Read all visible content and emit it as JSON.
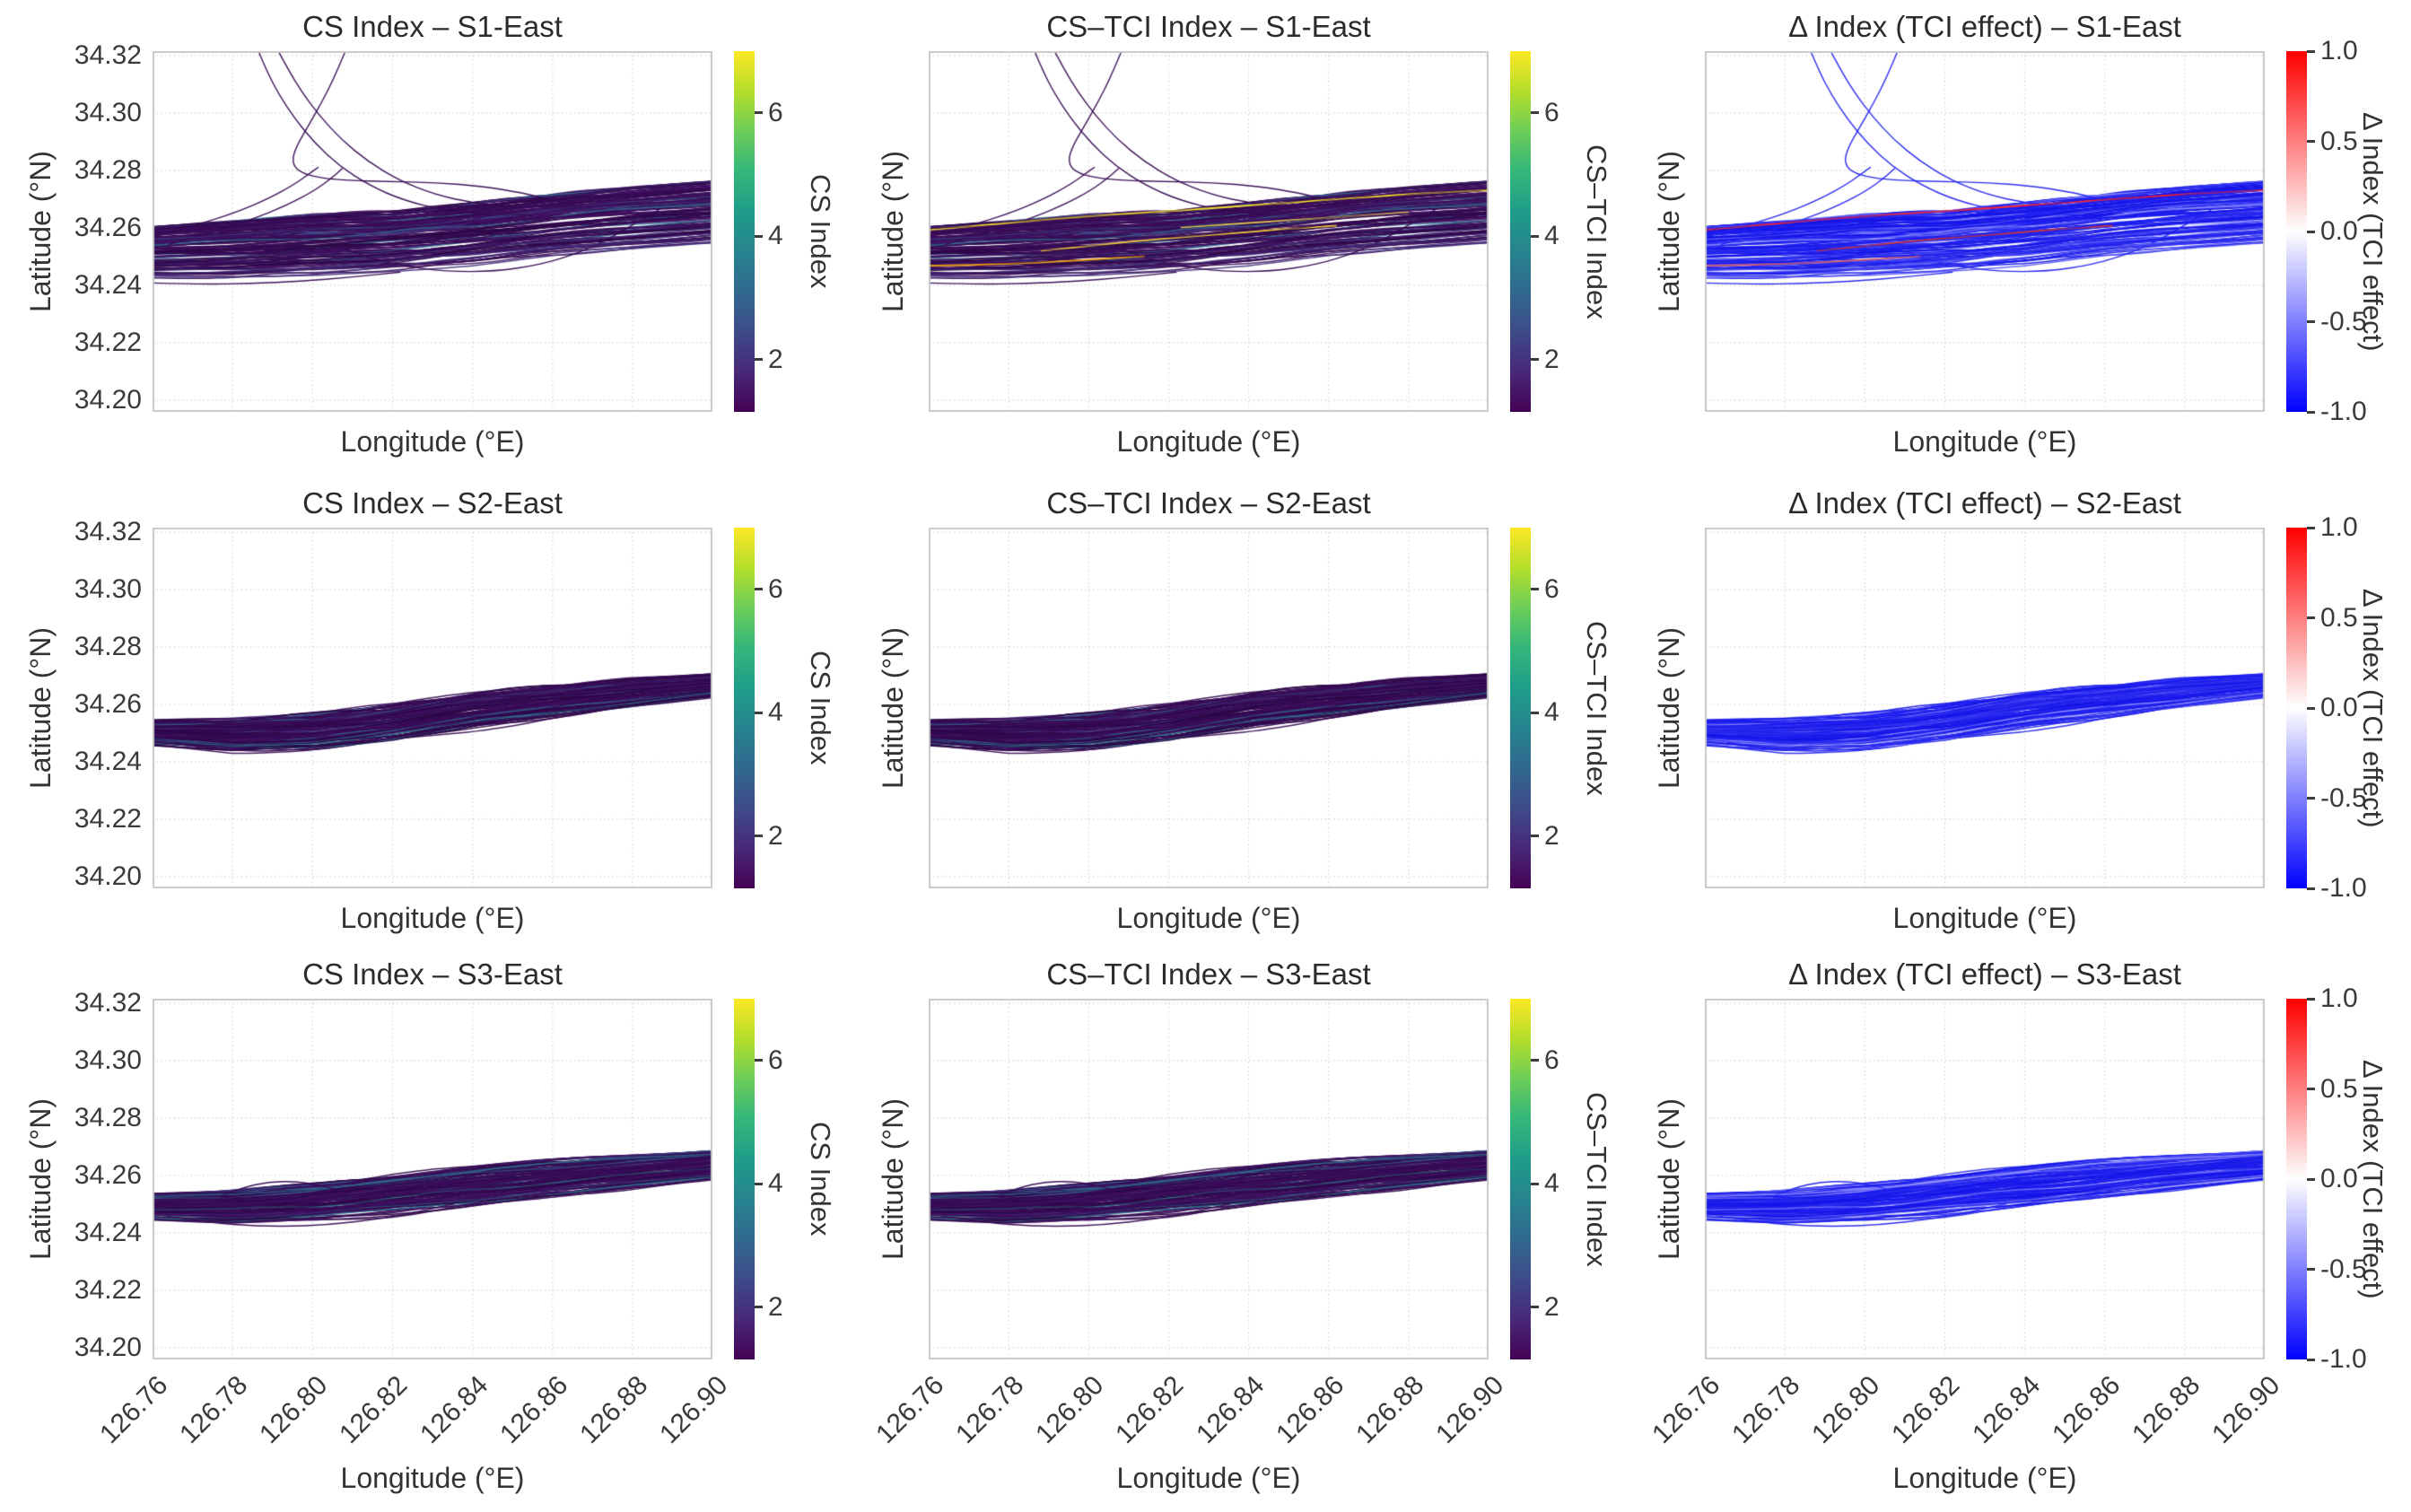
{
  "chart_data": {
    "type": "line",
    "subtype": "trajectory-small-multiples",
    "grid": {
      "n_rows": 3,
      "n_cols": 3
    },
    "row_names": [
      "S1-East",
      "S2-East",
      "S3-East"
    ],
    "col_names": [
      "CS Index",
      "CS–TCI Index",
      "Δ Index (TCI effect)"
    ],
    "titles": [
      [
        "CS Index – S1-East",
        "CS–TCI Index – S1-East",
        "Δ Index (TCI effect) – S1-East"
      ],
      [
        "CS Index – S2-East",
        "CS–TCI Index – S2-East",
        "Δ Index (TCI effect) – S2-East"
      ],
      [
        "CS Index – S3-East",
        "CS–TCI Index – S3-East",
        "Δ Index (TCI effect) – S3-East"
      ]
    ],
    "axes": {
      "xlabel": "Longitude (°E)",
      "ylabel": "Latitude (°N)",
      "xlim": [
        126.76,
        126.9
      ],
      "ylim": [
        34.1959,
        34.3216
      ],
      "xtick_labels": [
        "126.76",
        "126.78",
        "126.80",
        "126.82",
        "126.84",
        "126.86",
        "126.88",
        "126.90"
      ],
      "ytick_labels": [
        "34.32",
        "34.30",
        "34.28",
        "34.26",
        "34.24",
        "34.22",
        "34.20"
      ],
      "grid_on": true,
      "grid_style": "dotted",
      "xtick_rotation_deg": 45,
      "ytick_numbers_only_on_first_column": true,
      "xtick_numbers_only_on_bottom_row": true
    },
    "colorbars": [
      {
        "label": "CS Index",
        "cmap": "viridis",
        "range": [
          1.15,
          7.0
        ],
        "ticks": [
          {
            "label": "6",
            "value": 6
          },
          {
            "label": "4",
            "value": 4
          },
          {
            "label": "2",
            "value": 2
          }
        ]
      },
      {
        "label": "CS–TCI Index",
        "cmap": "viridis",
        "range": [
          1.15,
          7.0
        ],
        "ticks": [
          {
            "label": "6",
            "value": 6
          },
          {
            "label": "4",
            "value": 4
          },
          {
            "label": "2",
            "value": 2
          }
        ]
      },
      {
        "label": "Δ Index (TCI effect)",
        "cmap": "bwr",
        "range": [
          -1.0,
          1.0
        ],
        "ticks": [
          {
            "label": "1.0",
            "value": 1.0
          },
          {
            "label": "0.5",
            "value": 0.5
          },
          {
            "label": "0.0",
            "value": 0.0
          },
          {
            "label": "-0.5",
            "value": -0.5
          },
          {
            "label": "-1.0",
            "value": -1.0
          }
        ]
      }
    ],
    "palette": {
      "viridis_dark_lines": [
        "#360a52",
        "#2c0847",
        "#3f0f61"
      ],
      "viridis_mid_line": "#45337e",
      "viridis_steel_line": "#31688e",
      "viridis_teal_line": "#277f8e",
      "delta_blue_lines": [
        "#1e1ef2",
        "#2c2cee",
        "#1414e8"
      ],
      "delta_light_blue": "#5a5af6",
      "delta_lighter_blue": "#9393ff",
      "delta_palest_blue": "#bcbcff",
      "delta_red_line": "#ff2222",
      "grid_color": "#d4d4d4",
      "frame_color": "#c9c9c9",
      "title_color": "#2b2b2b",
      "tick_color": "#3a3a3a"
    },
    "rows": [
      {
        "name": "S1-East",
        "render": {
          "seed": 11,
          "n_lines": 135,
          "steps": 56
        },
        "envelope": {
          "x": [
            126.76,
            126.78,
            126.8,
            126.82,
            126.84,
            126.86,
            126.88,
            126.9
          ],
          "bottom": [
            34.2425,
            34.2425,
            34.2435,
            34.2455,
            34.2475,
            34.2505,
            34.2525,
            34.2545
          ],
          "top": [
            34.2605,
            34.2625,
            34.2645,
            34.2655,
            34.2685,
            34.2715,
            34.2745,
            34.2765
          ]
        },
        "features": [
          {
            "name": "north-exit-1",
            "pts": [
              [
                126.7865,
                34.3215
              ],
              [
                126.7886,
                34.3145
              ],
              [
                126.7916,
                34.3065
              ],
              [
                126.7956,
                34.298
              ],
              [
                126.8006,
                34.2895
              ],
              [
                126.8068,
                34.2815
              ],
              [
                126.8142,
                34.2748
              ],
              [
                126.8228,
                34.2696
              ],
              [
                126.8325,
                34.2663
              ],
              [
                126.8435,
                34.2648
              ],
              [
                126.8545,
                34.2645
              ]
            ]
          },
          {
            "name": "north-exit-2",
            "pts": [
              [
                126.7915,
                34.3215
              ],
              [
                126.794,
                34.315
              ],
              [
                126.7974,
                34.3072
              ],
              [
                126.8018,
                34.299
              ],
              [
                126.8072,
                34.2908
              ],
              [
                126.8138,
                34.2832
              ],
              [
                126.8216,
                34.2766
              ],
              [
                126.8306,
                34.2716
              ],
              [
                126.8405,
                34.2686
              ],
              [
                126.851,
                34.2672
              ]
            ]
          },
          {
            "name": "hook-loop",
            "pts": [
              [
                126.8082,
                34.3215
              ],
              [
                126.8055,
                34.3125
              ],
              [
                126.8022,
                34.3035
              ],
              [
                126.7988,
                34.2952
              ],
              [
                126.796,
                34.2885
              ],
              [
                126.7948,
                34.2832
              ],
              [
                126.7965,
                34.2795
              ],
              [
                126.8015,
                34.2775
              ],
              [
                126.809,
                34.2765
              ],
              [
                126.819,
                34.2762
              ],
              [
                126.831,
                34.2758
              ],
              [
                126.8425,
                34.2745
              ],
              [
                126.8525,
                34.2722
              ],
              [
                126.8605,
                34.2695
              ],
              [
                126.8665,
                34.2675
              ]
            ]
          },
          {
            "name": "diag-up-1",
            "pts": [
              [
                126.76,
                34.2568
              ],
              [
                126.7705,
                34.2608
              ],
              [
                126.7805,
                34.2652
              ],
              [
                126.789,
                34.2702
              ],
              [
                126.7955,
                34.2752
              ],
              [
                126.7995,
                34.2792
              ],
              [
                126.8015,
                34.2812
              ]
            ]
          },
          {
            "name": "diag-up-2",
            "pts": [
              [
                126.764,
                34.2542
              ],
              [
                126.774,
                34.2582
              ],
              [
                126.7845,
                34.2628
              ],
              [
                126.7935,
                34.2678
              ],
              [
                126.8005,
                34.273
              ],
              [
                126.8052,
                34.2778
              ],
              [
                126.8075,
                34.2808
              ]
            ]
          },
          {
            "name": "south-loop",
            "pts": [
              [
                126.805,
                34.2545
              ],
              [
                126.8125,
                34.2502
              ],
              [
                126.822,
                34.2468
              ],
              [
                126.8335,
                34.2448
              ],
              [
                126.8455,
                34.2448
              ],
              [
                126.857,
                34.2472
              ],
              [
                126.867,
                34.2515
              ],
              [
                126.8755,
                34.2572
              ],
              [
                126.8825,
                34.2632
              ],
              [
                126.8872,
                34.2668
              ]
            ]
          },
          {
            "name": "bottom-strand",
            "pts": [
              [
                126.76,
                34.2408
              ],
              [
                126.772,
                34.2404
              ],
              [
                126.7845,
                34.2406
              ],
              [
                126.797,
                34.2414
              ],
              [
                126.8095,
                34.2428
              ],
              [
                126.822,
                34.2446
              ]
            ]
          },
          {
            "name": "highlight-top-fringe",
            "pts": [
              [
                126.76,
                34.2592
              ],
              [
                126.775,
                34.2612
              ],
              [
                126.79,
                34.263
              ],
              [
                126.805,
                34.2645
              ],
              [
                126.82,
                34.2658
              ],
              [
                126.84,
                34.2678
              ],
              [
                126.86,
                34.2698
              ],
              [
                126.88,
                34.2718
              ],
              [
                126.9,
                34.2732
              ]
            ],
            "colors": [
              "#360a52",
              "#fde725",
              "#ff2222"
            ],
            "lw": 1.9
          },
          {
            "name": "highlight-mid",
            "pts": [
              [
                126.788,
                34.252
              ],
              [
                126.803,
                34.2542
              ],
              [
                126.818,
                34.2562
              ],
              [
                126.833,
                34.2578
              ],
              [
                126.848,
                34.2595
              ],
              [
                126.862,
                34.2608
              ]
            ],
            "colors": [
              "#2c0847",
              "#f2ce3a",
              "#cc3333"
            ],
            "lw": 1.8
          },
          {
            "name": "highlight-low-left",
            "pts": [
              [
                126.76,
                34.2468
              ],
              [
                126.7735,
                34.2472
              ],
              [
                126.787,
                34.2479
              ],
              [
                126.8005,
                34.2489
              ],
              [
                126.814,
                34.2502
              ]
            ],
            "colors": [
              "#360a52",
              "#fca50a",
              "#e06060"
            ],
            "lw": 1.8
          },
          {
            "name": "highlight-mid-right",
            "pts": [
              [
                126.823,
                34.2602
              ],
              [
                126.838,
                34.2615
              ],
              [
                126.853,
                34.2629
              ],
              [
                126.868,
                34.2643
              ],
              [
                126.88,
                34.2655
              ]
            ],
            "colors": [
              "#3f0f61",
              "#e8d84a",
              "#2323f0"
            ],
            "lw": 1.8
          }
        ]
      },
      {
        "name": "S2-East",
        "render": {
          "seed": 22,
          "n_lines": 125,
          "steps": 56
        },
        "envelope": {
          "x": [
            126.76,
            126.78,
            126.8,
            126.82,
            126.84,
            126.86,
            126.88,
            126.9
          ],
          "bottom": [
            34.2455,
            34.2435,
            34.2445,
            34.2475,
            34.2515,
            34.2555,
            34.259,
            34.2625
          ],
          "top": [
            34.2545,
            34.255,
            34.2565,
            34.2595,
            34.2635,
            34.2665,
            34.269,
            34.2705
          ]
        },
        "features": [
          {
            "name": "bottom-dip",
            "pts": [
              [
                126.7655,
                34.2468
              ],
              [
                126.774,
                34.2448
              ],
              [
                126.7845,
                34.2436
              ],
              [
                126.7955,
                34.244
              ],
              [
                126.8065,
                34.2458
              ],
              [
                126.8165,
                34.248
              ]
            ]
          }
        ]
      },
      {
        "name": "S3-East",
        "render": {
          "seed": 33,
          "n_lines": 125,
          "steps": 56
        },
        "envelope": {
          "x": [
            126.76,
            126.78,
            126.8,
            126.82,
            126.84,
            126.86,
            126.88,
            126.9
          ],
          "bottom": [
            34.2445,
            34.2435,
            34.2445,
            34.2465,
            34.2495,
            34.2525,
            34.2555,
            34.2585
          ],
          "top": [
            34.2535,
            34.2545,
            34.2565,
            34.2595,
            34.2625,
            34.265,
            34.2668,
            34.2685
          ]
        },
        "features": [
          {
            "name": "top-bump-loop",
            "pts": [
              [
                126.777,
                34.2528
              ],
              [
                126.7825,
                34.2558
              ],
              [
                126.789,
                34.2578
              ],
              [
                126.796,
                34.258
              ],
              [
                126.802,
                34.2565
              ],
              [
                126.807,
                34.2548
              ],
              [
                126.798,
                34.2532
              ],
              [
                126.79,
                34.2528
              ],
              [
                126.7835,
                34.2522
              ],
              [
                126.777,
                34.2525
              ]
            ]
          },
          {
            "name": "bottom-dip-loop",
            "pts": [
              [
                126.762,
                34.2462
              ],
              [
                126.77,
                34.2445
              ],
              [
                126.78,
                34.2428
              ],
              [
                126.792,
                34.2422
              ],
              [
                126.804,
                34.2428
              ],
              [
                126.8165,
                34.2448
              ],
              [
                126.828,
                34.2478
              ],
              [
                126.8355,
                34.2502
              ]
            ]
          }
        ]
      }
    ]
  }
}
